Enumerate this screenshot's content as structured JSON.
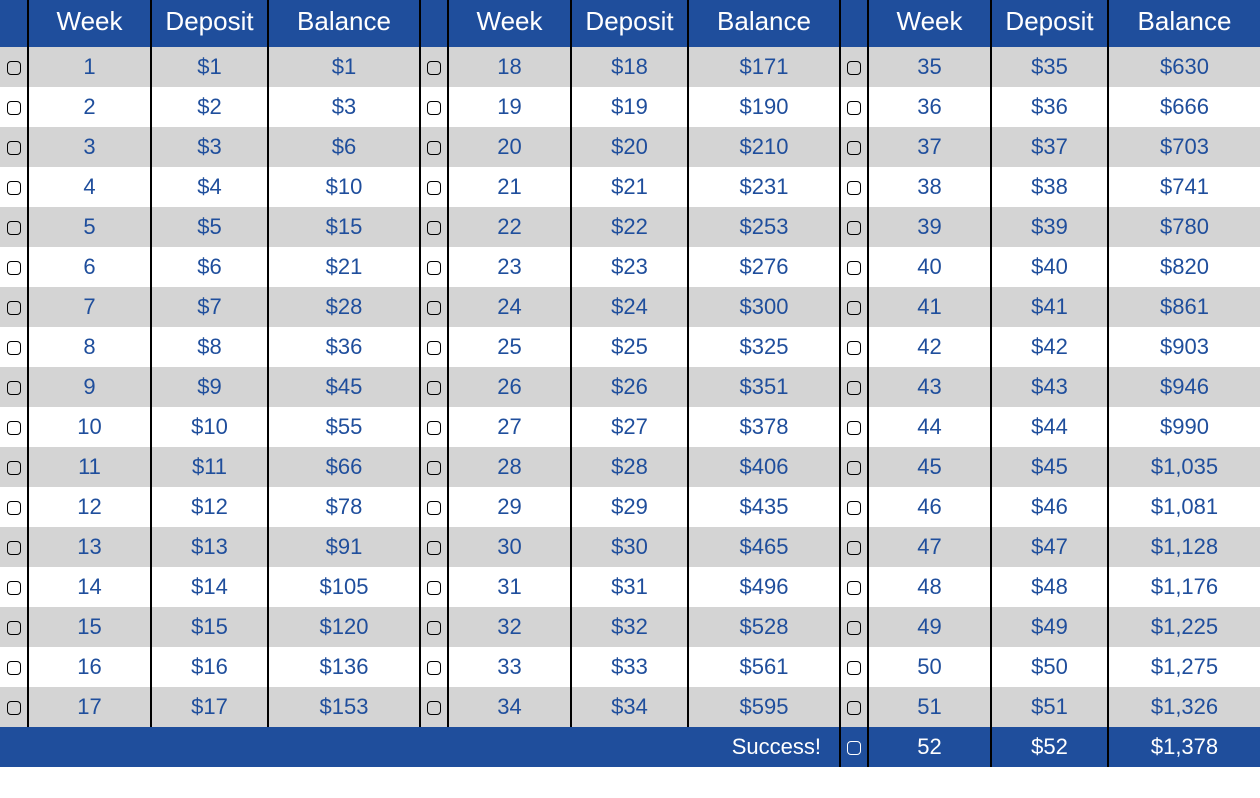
{
  "style": {
    "header_bg": "#1f4e9c",
    "header_fg": "#ffffff",
    "value_fg": "#1f4e9c",
    "row_odd_bg": "#d4d4d4",
    "row_even_bg": "#ffffff",
    "footer_bg": "#1f4e9c",
    "footer_fg": "#ffffff",
    "header_fontsize": 26,
    "value_fontsize": 22,
    "footer_fontsize": 24,
    "border_color": "#000000"
  },
  "columns": {
    "week": "Week",
    "deposit": "Deposit",
    "balance": "Balance"
  },
  "footer": {
    "label": "Success!",
    "week": "52",
    "deposit": "$52",
    "balance": "$1,378"
  },
  "sections": [
    [
      {
        "week": "1",
        "deposit": "$1",
        "balance": "$1"
      },
      {
        "week": "2",
        "deposit": "$2",
        "balance": "$3"
      },
      {
        "week": "3",
        "deposit": "$3",
        "balance": "$6"
      },
      {
        "week": "4",
        "deposit": "$4",
        "balance": "$10"
      },
      {
        "week": "5",
        "deposit": "$5",
        "balance": "$15"
      },
      {
        "week": "6",
        "deposit": "$6",
        "balance": "$21"
      },
      {
        "week": "7",
        "deposit": "$7",
        "balance": "$28"
      },
      {
        "week": "8",
        "deposit": "$8",
        "balance": "$36"
      },
      {
        "week": "9",
        "deposit": "$9",
        "balance": "$45"
      },
      {
        "week": "10",
        "deposit": "$10",
        "balance": "$55"
      },
      {
        "week": "11",
        "deposit": "$11",
        "balance": "$66"
      },
      {
        "week": "12",
        "deposit": "$12",
        "balance": "$78"
      },
      {
        "week": "13",
        "deposit": "$13",
        "balance": "$91"
      },
      {
        "week": "14",
        "deposit": "$14",
        "balance": "$105"
      },
      {
        "week": "15",
        "deposit": "$15",
        "balance": "$120"
      },
      {
        "week": "16",
        "deposit": "$16",
        "balance": "$136"
      },
      {
        "week": "17",
        "deposit": "$17",
        "balance": "$153"
      }
    ],
    [
      {
        "week": "18",
        "deposit": "$18",
        "balance": "$171"
      },
      {
        "week": "19",
        "deposit": "$19",
        "balance": "$190"
      },
      {
        "week": "20",
        "deposit": "$20",
        "balance": "$210"
      },
      {
        "week": "21",
        "deposit": "$21",
        "balance": "$231"
      },
      {
        "week": "22",
        "deposit": "$22",
        "balance": "$253"
      },
      {
        "week": "23",
        "deposit": "$23",
        "balance": "$276"
      },
      {
        "week": "24",
        "deposit": "$24",
        "balance": "$300"
      },
      {
        "week": "25",
        "deposit": "$25",
        "balance": "$325"
      },
      {
        "week": "26",
        "deposit": "$26",
        "balance": "$351"
      },
      {
        "week": "27",
        "deposit": "$27",
        "balance": "$378"
      },
      {
        "week": "28",
        "deposit": "$28",
        "balance": "$406"
      },
      {
        "week": "29",
        "deposit": "$29",
        "balance": "$435"
      },
      {
        "week": "30",
        "deposit": "$30",
        "balance": "$465"
      },
      {
        "week": "31",
        "deposit": "$31",
        "balance": "$496"
      },
      {
        "week": "32",
        "deposit": "$32",
        "balance": "$528"
      },
      {
        "week": "33",
        "deposit": "$33",
        "balance": "$561"
      },
      {
        "week": "34",
        "deposit": "$34",
        "balance": "$595"
      }
    ],
    [
      {
        "week": "35",
        "deposit": "$35",
        "balance": "$630"
      },
      {
        "week": "36",
        "deposit": "$36",
        "balance": "$666"
      },
      {
        "week": "37",
        "deposit": "$37",
        "balance": "$703"
      },
      {
        "week": "38",
        "deposit": "$38",
        "balance": "$741"
      },
      {
        "week": "39",
        "deposit": "$39",
        "balance": "$780"
      },
      {
        "week": "40",
        "deposit": "$40",
        "balance": "$820"
      },
      {
        "week": "41",
        "deposit": "$41",
        "balance": "$861"
      },
      {
        "week": "42",
        "deposit": "$42",
        "balance": "$903"
      },
      {
        "week": "43",
        "deposit": "$43",
        "balance": "$946"
      },
      {
        "week": "44",
        "deposit": "$44",
        "balance": "$990"
      },
      {
        "week": "45",
        "deposit": "$45",
        "balance": "$1,035"
      },
      {
        "week": "46",
        "deposit": "$46",
        "balance": "$1,081"
      },
      {
        "week": "47",
        "deposit": "$47",
        "balance": "$1,128"
      },
      {
        "week": "48",
        "deposit": "$48",
        "balance": "$1,176"
      },
      {
        "week": "49",
        "deposit": "$49",
        "balance": "$1,225"
      },
      {
        "week": "50",
        "deposit": "$50",
        "balance": "$1,275"
      },
      {
        "week": "51",
        "deposit": "$51",
        "balance": "$1,326"
      }
    ]
  ]
}
